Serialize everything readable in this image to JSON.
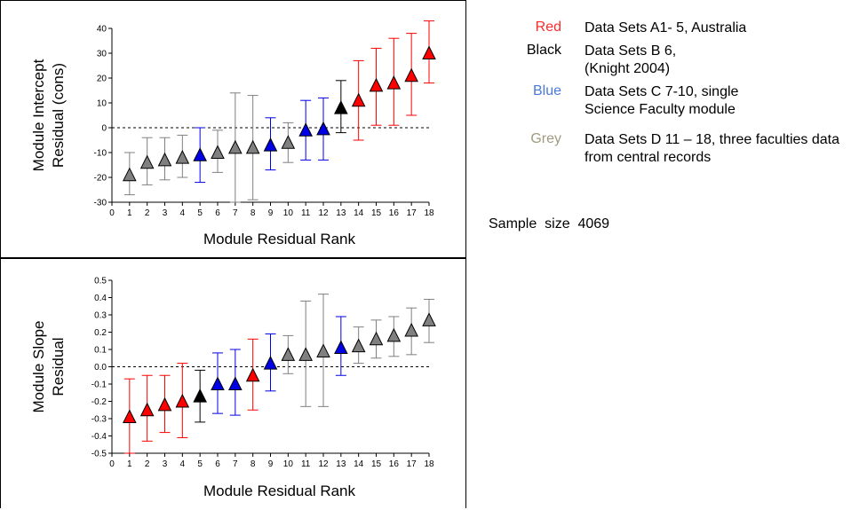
{
  "legend": {
    "items": [
      {
        "label": "Red",
        "color": "#ff2a2a",
        "desc": "Data Sets A1- 5, Australia"
      },
      {
        "label": "Black",
        "color": "#000000",
        "desc": "Data Sets B 6, (Knight 2004)"
      },
      {
        "label": "Blue",
        "color": "#4a7ad8",
        "desc": "Data Sets C 7-10, single Science Faculty module"
      },
      {
        "label": "Grey",
        "color": "#a09a80",
        "desc": "Data Sets D 11 – 18, three faculties data from central records"
      }
    ],
    "sample_label": "Sample",
    "sample_size_label": "size",
    "sample_value": "4069"
  },
  "series_colors": {
    "red": "#ff0000",
    "black": "#000000",
    "blue": "#0000e6",
    "grey": "#808080"
  },
  "chart_data": [
    {
      "type": "scatter",
      "ylabel": "Module Intercept Residual (cons)",
      "ylabel_lines": [
        "Module Intercept",
        "Residual (cons)"
      ],
      "xlabel": "Module Residual Rank",
      "x_ticks": [
        "0",
        "1",
        "2",
        "3",
        "4",
        "5",
        "6",
        "7",
        "8",
        "9",
        "10",
        "11",
        "12",
        "13",
        "14",
        "15",
        "16",
        "17",
        "18"
      ],
      "y_ticks": [
        "40",
        "30",
        "20",
        "10",
        "0",
        "-10",
        "-20",
        "-30"
      ],
      "xlim": [
        0,
        18
      ],
      "ylim": [
        -30,
        40
      ],
      "reference_line": 0,
      "points": [
        {
          "x": 1,
          "y": -19,
          "lo": -27,
          "hi": -10,
          "color": "grey"
        },
        {
          "x": 2,
          "y": -14,
          "lo": -23,
          "hi": -4,
          "color": "grey"
        },
        {
          "x": 3,
          "y": -13,
          "lo": -21,
          "hi": -4,
          "color": "grey"
        },
        {
          "x": 4,
          "y": -12,
          "lo": -20,
          "hi": -3,
          "color": "grey"
        },
        {
          "x": 5,
          "y": -11,
          "lo": -22,
          "hi": 0,
          "color": "blue"
        },
        {
          "x": 6,
          "y": -10,
          "lo": -18,
          "hi": -1,
          "color": "grey"
        },
        {
          "x": 7,
          "y": -8,
          "lo": -30,
          "hi": 14,
          "color": "grey"
        },
        {
          "x": 8,
          "y": -8,
          "lo": -29,
          "hi": 13,
          "color": "grey"
        },
        {
          "x": 9,
          "y": -7,
          "lo": -17,
          "hi": 4,
          "color": "blue"
        },
        {
          "x": 10,
          "y": -6,
          "lo": -14,
          "hi": 2,
          "color": "grey"
        },
        {
          "x": 11,
          "y": -1,
          "lo": -13,
          "hi": 11,
          "color": "blue"
        },
        {
          "x": 12,
          "y": -0.5,
          "lo": -13,
          "hi": 12,
          "color": "blue"
        },
        {
          "x": 13,
          "y": 8,
          "lo": -2,
          "hi": 19,
          "color": "black"
        },
        {
          "x": 14,
          "y": 11,
          "lo": -5,
          "hi": 27,
          "color": "red"
        },
        {
          "x": 15,
          "y": 17,
          "lo": 1,
          "hi": 32,
          "color": "red"
        },
        {
          "x": 16,
          "y": 18,
          "lo": 1,
          "hi": 36,
          "color": "red"
        },
        {
          "x": 17,
          "y": 21,
          "lo": 5,
          "hi": 38,
          "color": "red"
        },
        {
          "x": 18,
          "y": 30,
          "lo": 18,
          "hi": 43,
          "color": "red"
        }
      ]
    },
    {
      "type": "scatter",
      "ylabel": "Module Slope Residual",
      "ylabel_lines": [
        "Module Slope",
        "Residual"
      ],
      "xlabel": "Module Residual Rank",
      "x_ticks": [
        "0",
        "1",
        "2",
        "3",
        "4",
        "5",
        "6",
        "7",
        "8",
        "9",
        "10",
        "11",
        "12",
        "13",
        "14",
        "15",
        "16",
        "17",
        "18"
      ],
      "y_ticks": [
        "0.5",
        "0.4",
        "0.3",
        "0.2",
        "0.1",
        "0.0",
        "-0.1",
        "-0.2",
        "-0.3",
        "-0.4",
        "-0.5"
      ],
      "xlim": [
        0,
        18
      ],
      "ylim": [
        -0.5,
        0.5
      ],
      "reference_line": 0,
      "points": [
        {
          "x": 1,
          "y": -0.29,
          "lo": -0.5,
          "hi": -0.07,
          "color": "red"
        },
        {
          "x": 2,
          "y": -0.25,
          "lo": -0.43,
          "hi": -0.05,
          "color": "red"
        },
        {
          "x": 3,
          "y": -0.22,
          "lo": -0.38,
          "hi": -0.05,
          "color": "red"
        },
        {
          "x": 4,
          "y": -0.2,
          "lo": -0.41,
          "hi": 0.02,
          "color": "red"
        },
        {
          "x": 5,
          "y": -0.17,
          "lo": -0.32,
          "hi": -0.02,
          "color": "black"
        },
        {
          "x": 6,
          "y": -0.1,
          "lo": -0.27,
          "hi": 0.08,
          "color": "blue"
        },
        {
          "x": 7,
          "y": -0.1,
          "lo": -0.28,
          "hi": 0.1,
          "color": "blue"
        },
        {
          "x": 8,
          "y": -0.05,
          "lo": -0.25,
          "hi": 0.16,
          "color": "red"
        },
        {
          "x": 9,
          "y": 0.02,
          "lo": -0.14,
          "hi": 0.19,
          "color": "blue"
        },
        {
          "x": 10,
          "y": 0.07,
          "lo": -0.04,
          "hi": 0.18,
          "color": "grey"
        },
        {
          "x": 11,
          "y": 0.07,
          "lo": -0.23,
          "hi": 0.38,
          "color": "grey"
        },
        {
          "x": 12,
          "y": 0.09,
          "lo": -0.23,
          "hi": 0.42,
          "color": "grey"
        },
        {
          "x": 13,
          "y": 0.11,
          "lo": -0.05,
          "hi": 0.29,
          "color": "blue"
        },
        {
          "x": 14,
          "y": 0.12,
          "lo": 0.02,
          "hi": 0.23,
          "color": "grey"
        },
        {
          "x": 15,
          "y": 0.16,
          "lo": 0.05,
          "hi": 0.27,
          "color": "grey"
        },
        {
          "x": 16,
          "y": 0.18,
          "lo": 0.06,
          "hi": 0.29,
          "color": "grey"
        },
        {
          "x": 17,
          "y": 0.21,
          "lo": 0.07,
          "hi": 0.34,
          "color": "grey"
        },
        {
          "x": 18,
          "y": 0.27,
          "lo": 0.14,
          "hi": 0.39,
          "color": "grey"
        }
      ]
    }
  ]
}
